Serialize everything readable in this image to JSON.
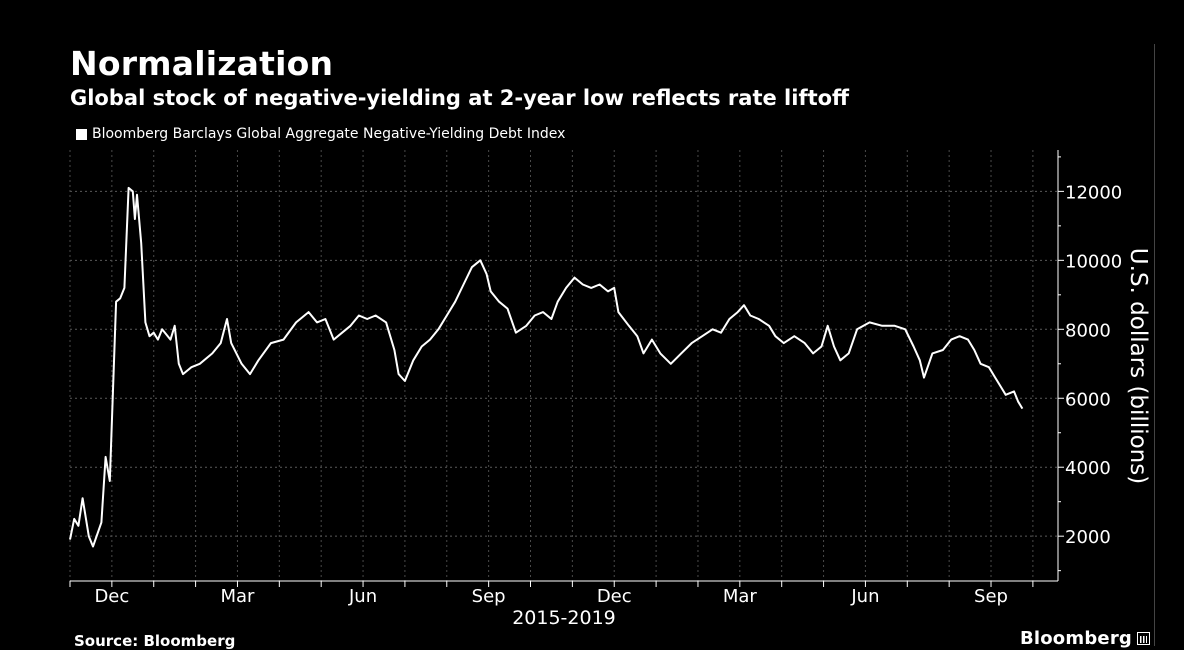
{
  "chart_data": {
    "type": "line",
    "title": "Normalization",
    "subtitle": "Global stock of negative-yielding at 2-year low reflects rate liftoff",
    "legend": [
      "Bloomberg Barclays Global Aggregate Negative-Yielding Debt Index"
    ],
    "legend_placement": "top-left",
    "xlabel": "2015-2019",
    "ylabel": "U.S. dollars (billions)",
    "x_tick_labels": [
      "Dec",
      "Mar",
      "Jun",
      "Sep",
      "Dec",
      "Mar",
      "Jun",
      "Sep"
    ],
    "y_ticks": [
      2000,
      4000,
      6000,
      8000,
      10000,
      12000
    ],
    "ylim": [
      700,
      13200
    ],
    "grid": true,
    "series": [
      {
        "name": "Bloomberg Barclays Global Aggregate Negative-Yielding Debt Index",
        "points": [
          [
            0,
            1900
          ],
          [
            0.1,
            2500
          ],
          [
            0.2,
            2300
          ],
          [
            0.3,
            3100
          ],
          [
            0.45,
            2000
          ],
          [
            0.55,
            1700
          ],
          [
            0.75,
            2400
          ],
          [
            0.85,
            4300
          ],
          [
            0.95,
            3600
          ],
          [
            1.1,
            8800
          ],
          [
            1.2,
            8900
          ],
          [
            1.3,
            9200
          ],
          [
            1.4,
            12100
          ],
          [
            1.5,
            12000
          ],
          [
            1.55,
            11200
          ],
          [
            1.6,
            11900
          ],
          [
            1.7,
            10500
          ],
          [
            1.8,
            8200
          ],
          [
            1.9,
            7800
          ],
          [
            2.0,
            7900
          ],
          [
            2.1,
            7700
          ],
          [
            2.2,
            8000
          ],
          [
            2.4,
            7700
          ],
          [
            2.5,
            8100
          ],
          [
            2.6,
            7000
          ],
          [
            2.7,
            6700
          ],
          [
            2.9,
            6900
          ],
          [
            3.1,
            7000
          ],
          [
            3.4,
            7300
          ],
          [
            3.6,
            7600
          ],
          [
            3.75,
            8300
          ],
          [
            3.85,
            7600
          ],
          [
            4.1,
            7000
          ],
          [
            4.3,
            6700
          ],
          [
            4.5,
            7100
          ],
          [
            4.8,
            7600
          ],
          [
            5.1,
            7700
          ],
          [
            5.4,
            8200
          ],
          [
            5.7,
            8500
          ],
          [
            5.9,
            8200
          ],
          [
            6.1,
            8300
          ],
          [
            6.3,
            7700
          ],
          [
            6.5,
            7900
          ],
          [
            6.7,
            8100
          ],
          [
            6.9,
            8400
          ],
          [
            7.1,
            8300
          ],
          [
            7.3,
            8400
          ],
          [
            7.55,
            8200
          ],
          [
            7.75,
            7400
          ],
          [
            7.85,
            6700
          ],
          [
            8.0,
            6500
          ],
          [
            8.2,
            7100
          ],
          [
            8.4,
            7500
          ],
          [
            8.6,
            7700
          ],
          [
            8.8,
            8000
          ],
          [
            9.0,
            8400
          ],
          [
            9.2,
            8800
          ],
          [
            9.4,
            9300
          ],
          [
            9.6,
            9800
          ],
          [
            9.8,
            10000
          ],
          [
            9.95,
            9600
          ],
          [
            10.05,
            9100
          ],
          [
            10.25,
            8800
          ],
          [
            10.45,
            8600
          ],
          [
            10.65,
            7900
          ],
          [
            10.9,
            8100
          ],
          [
            11.1,
            8400
          ],
          [
            11.3,
            8500
          ],
          [
            11.5,
            8300
          ],
          [
            11.65,
            8800
          ],
          [
            11.85,
            9200
          ],
          [
            12.05,
            9500
          ],
          [
            12.25,
            9300
          ],
          [
            12.45,
            9200
          ],
          [
            12.65,
            9300
          ],
          [
            12.85,
            9100
          ],
          [
            13.0,
            9200
          ],
          [
            13.1,
            8500
          ],
          [
            13.35,
            8100
          ],
          [
            13.55,
            7800
          ],
          [
            13.7,
            7300
          ],
          [
            13.9,
            7700
          ],
          [
            14.1,
            7300
          ],
          [
            14.35,
            7000
          ],
          [
            14.6,
            7300
          ],
          [
            14.85,
            7600
          ],
          [
            15.1,
            7800
          ],
          [
            15.35,
            8000
          ],
          [
            15.55,
            7900
          ],
          [
            15.75,
            8300
          ],
          [
            15.95,
            8500
          ],
          [
            16.1,
            8700
          ],
          [
            16.25,
            8400
          ],
          [
            16.45,
            8300
          ],
          [
            16.7,
            8100
          ],
          [
            16.85,
            7800
          ],
          [
            17.05,
            7600
          ],
          [
            17.3,
            7800
          ],
          [
            17.55,
            7600
          ],
          [
            17.75,
            7300
          ],
          [
            17.95,
            7500
          ],
          [
            18.1,
            8100
          ],
          [
            18.25,
            7500
          ],
          [
            18.4,
            7100
          ],
          [
            18.6,
            7300
          ],
          [
            18.8,
            8000
          ],
          [
            19.1,
            8200
          ],
          [
            19.4,
            8100
          ],
          [
            19.7,
            8100
          ],
          [
            19.95,
            8000
          ],
          [
            20.15,
            7500
          ],
          [
            20.3,
            7100
          ],
          [
            20.4,
            6600
          ],
          [
            20.6,
            7300
          ],
          [
            20.85,
            7400
          ],
          [
            21.05,
            7700
          ],
          [
            21.25,
            7800
          ],
          [
            21.45,
            7700
          ],
          [
            21.6,
            7400
          ],
          [
            21.75,
            7000
          ],
          [
            21.95,
            6900
          ],
          [
            22.1,
            6600
          ],
          [
            22.25,
            6300
          ],
          [
            22.35,
            6100
          ],
          [
            22.55,
            6200
          ],
          [
            22.65,
            5900
          ],
          [
            22.75,
            5700
          ]
        ]
      }
    ]
  },
  "footer": {
    "source": "Source: Bloomberg",
    "brand": "Bloomberg"
  }
}
